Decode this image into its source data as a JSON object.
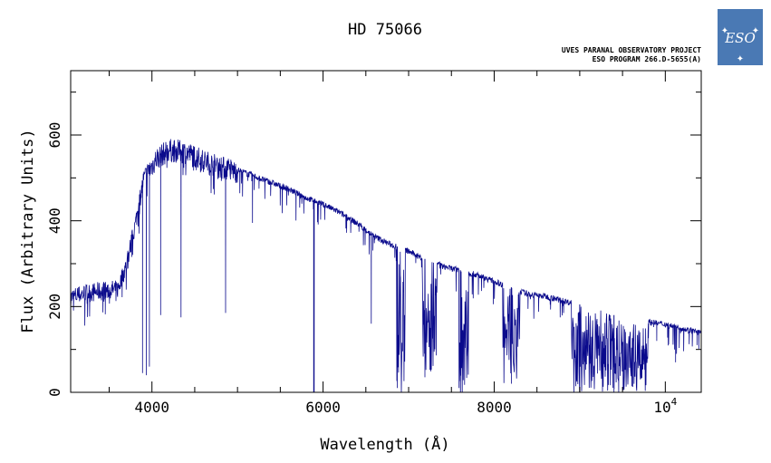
{
  "header": {
    "title": "HD 75066",
    "project_line": "UVES PARANAL OBSERVATORY PROJECT",
    "program_line": "ESO PROGRAM 266.D-5655(A)"
  },
  "logo": {
    "text": "ESO",
    "background": "#4a79b4",
    "icon": "eso-logo-icon"
  },
  "colors": {
    "spectrum": "#0a0a8c",
    "frame": "#000000"
  },
  "chart_data": {
    "type": "line",
    "title": "HD 75066",
    "xlabel": "Wavelength (Å)",
    "ylabel": "Flux (Arbitrary Units)",
    "xlim": [
      3050,
      10420
    ],
    "ylim": [
      0,
      750
    ],
    "grid": false,
    "x_ticks": [
      {
        "value": 4000,
        "label": "4000"
      },
      {
        "value": 6000,
        "label": "6000"
      },
      {
        "value": 8000,
        "label": "8000"
      },
      {
        "value": 10000,
        "label": "10",
        "exponent": "4"
      }
    ],
    "y_ticks": [
      {
        "value": 0,
        "label": "0"
      },
      {
        "value": 200,
        "label": "200"
      },
      {
        "value": 400,
        "label": "400"
      },
      {
        "value": 600,
        "label": "600"
      }
    ],
    "series": [
      {
        "continuum": [
          [
            3050,
            225
          ],
          [
            3200,
            235
          ],
          [
            3400,
            240
          ],
          [
            3600,
            245
          ],
          [
            3700,
            300
          ],
          [
            3800,
            390
          ],
          [
            3900,
            500
          ],
          [
            4050,
            550
          ],
          [
            4200,
            570
          ],
          [
            4400,
            565
          ],
          [
            4600,
            545
          ],
          [
            4800,
            530
          ],
          [
            5000,
            520
          ],
          [
            5200,
            505
          ],
          [
            5400,
            490
          ],
          [
            5600,
            475
          ],
          [
            5800,
            455
          ],
          [
            6000,
            440
          ],
          [
            6200,
            420
          ],
          [
            6400,
            395
          ],
          [
            6600,
            365
          ],
          [
            6800,
            345
          ],
          [
            7000,
            330
          ],
          [
            7200,
            310
          ],
          [
            7400,
            295
          ],
          [
            7600,
            285
          ],
          [
            7800,
            275
          ],
          [
            8000,
            260
          ],
          [
            8200,
            245
          ],
          [
            8400,
            230
          ],
          [
            8600,
            225
          ],
          [
            8800,
            215
          ],
          [
            9000,
            205
          ],
          [
            9200,
            195
          ],
          [
            9400,
            180
          ],
          [
            9600,
            170
          ],
          [
            9800,
            165
          ],
          [
            10000,
            160
          ],
          [
            10200,
            150
          ],
          [
            10420,
            140
          ]
        ],
        "absorption_lines": [
          [
            3890,
            45
          ],
          [
            3935,
            40
          ],
          [
            3970,
            60
          ],
          [
            4102,
            180
          ],
          [
            4340,
            175
          ],
          [
            4861,
            185
          ],
          [
            5175,
            395
          ],
          [
            5890,
            0
          ],
          [
            5896,
            0
          ],
          [
            6563,
            160
          ],
          [
            6867,
            10
          ],
          [
            7190,
            35
          ],
          [
            7605,
            0
          ],
          [
            8200,
            20
          ],
          [
            9000,
            0
          ],
          [
            9400,
            0
          ],
          [
            9900,
            120
          ],
          [
            10120,
            70
          ],
          [
            10370,
            110
          ]
        ],
        "telluric_bands": [
          [
            6860,
            6960,
            20
          ],
          [
            7160,
            7330,
            40
          ],
          [
            7590,
            7700,
            0
          ],
          [
            8100,
            8300,
            20
          ],
          [
            8900,
            9800,
            0
          ]
        ]
      }
    ]
  }
}
